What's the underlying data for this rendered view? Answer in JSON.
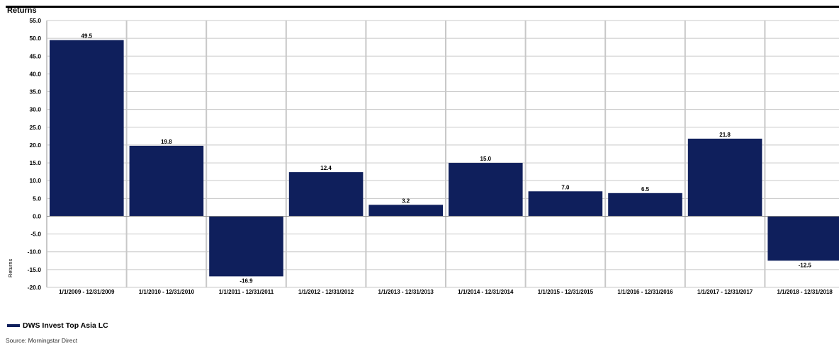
{
  "chart_data": {
    "type": "bar",
    "title": "Returns",
    "ylabel": "Returns",
    "xlabel": "",
    "ylim": [
      -20,
      55
    ],
    "yticks": [
      "55.0",
      "50.0",
      "45.0",
      "40.0",
      "35.0",
      "30.0",
      "25.0",
      "20.0",
      "15.0",
      "10.0",
      "5.0",
      "0.0",
      "-5.0",
      "-10.0",
      "-15.0",
      "-20.0"
    ],
    "grid": true,
    "categories": [
      "1/1/2009 - 12/31/2009",
      "1/1/2010 - 12/31/2010",
      "1/1/2011 - 12/31/2011",
      "1/1/2012 - 12/31/2012",
      "1/1/2013 - 12/31/2013",
      "1/1/2014 - 12/31/2014",
      "1/1/2015 - 12/31/2015",
      "1/1/2016 - 12/31/2016",
      "1/1/2017 - 12/31/2017",
      "1/1/2018 - 12/31/2018"
    ],
    "series": [
      {
        "name": "DWS Invest Top Asia LC",
        "color": "#0f1f5c",
        "values": [
          49.5,
          19.8,
          -16.9,
          12.4,
          3.2,
          15.0,
          7.0,
          6.5,
          21.8,
          -12.5
        ],
        "labels": [
          "49.5",
          "19.8",
          "-16.9",
          "12.4",
          "3.2",
          "15.0",
          "7.0",
          "6.5",
          "21.8",
          "-12.5"
        ]
      }
    ],
    "legend_position": "bottom-left"
  },
  "source": "Source: Morningstar Direct"
}
